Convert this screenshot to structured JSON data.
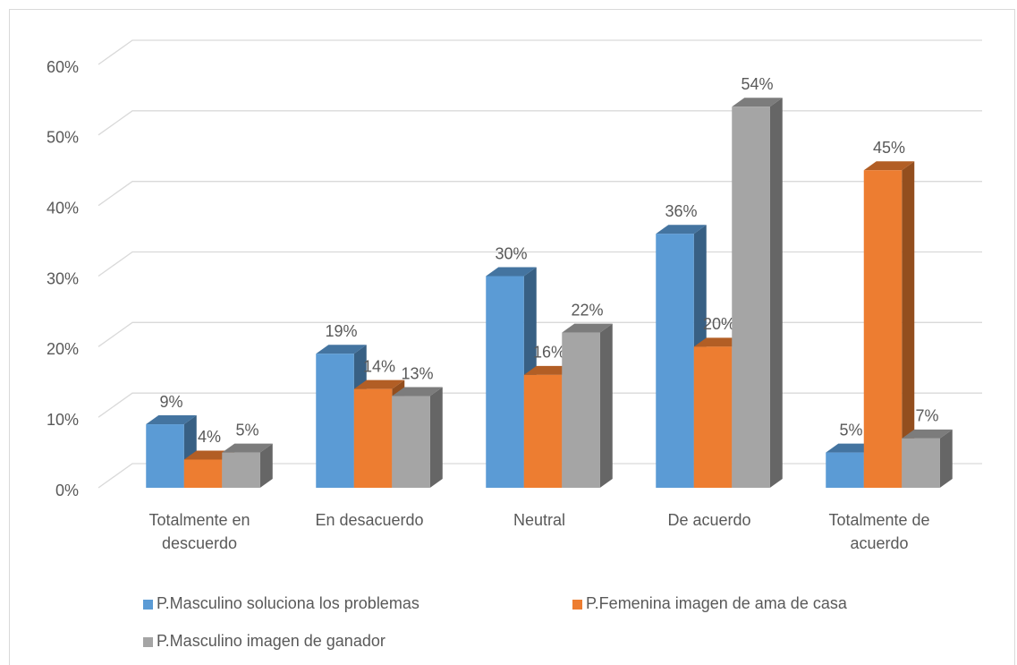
{
  "chart_data": {
    "type": "bar3d",
    "categories": [
      "Totalmente en descuerdo",
      "En desacuerdo",
      "Neutral",
      "De acuerdo",
      "Totalmente de acuerdo"
    ],
    "series": [
      {
        "name": "P.Masculino soluciona los problemas",
        "color": "#5b9bd5",
        "values": [
          9,
          19,
          30,
          36,
          5
        ],
        "value_labels": [
          "9%",
          "19%",
          "30%",
          "36%",
          "5%"
        ]
      },
      {
        "name": "P.Femenina imagen de ama de casa",
        "color": "#ed7d31",
        "values": [
          4,
          14,
          16,
          20,
          45
        ],
        "value_labels": [
          "4%",
          "14%",
          "16%",
          "20%",
          "45%"
        ]
      },
      {
        "name": "P.Masculino imagen de ganador",
        "color": "#a5a5a5",
        "values": [
          5,
          13,
          22,
          54,
          7
        ],
        "value_labels": [
          "5%",
          "13%",
          "22%",
          "54%",
          "7%"
        ]
      }
    ],
    "ylim": [
      0,
      60
    ],
    "yticks": [
      {
        "value": 0,
        "label": "0%"
      },
      {
        "value": 10,
        "label": "10%"
      },
      {
        "value": 20,
        "label": "20%"
      },
      {
        "value": 30,
        "label": "30%"
      },
      {
        "value": 40,
        "label": "40%"
      },
      {
        "value": 50,
        "label": "50%"
      },
      {
        "value": 60,
        "label": "60%"
      }
    ],
    "grid": true,
    "legend": "bottom"
  }
}
